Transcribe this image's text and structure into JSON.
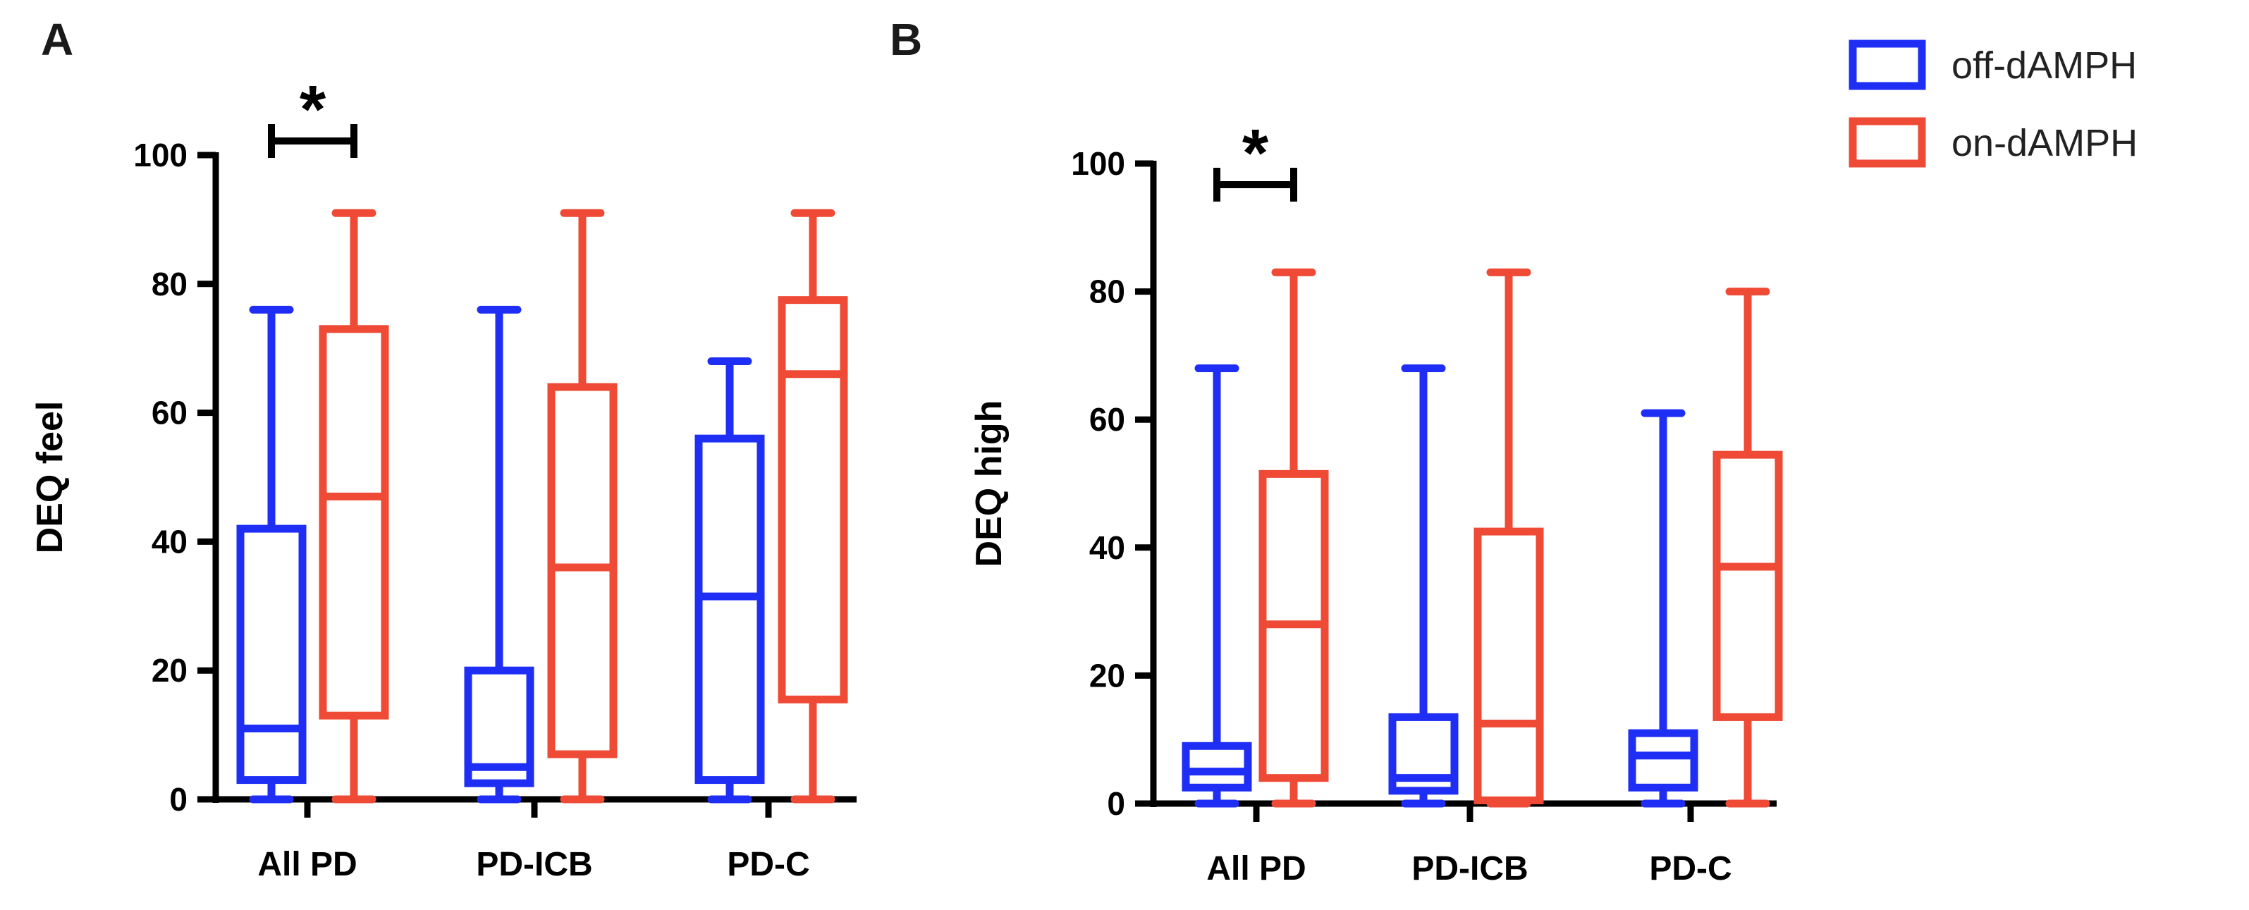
{
  "legend": [
    {
      "label": "off-dAMPH",
      "color": "#1f2ef5"
    },
    {
      "label": "on-dAMPH",
      "color": "#ee4a35"
    }
  ],
  "chart_data": [
    {
      "type": "boxplot",
      "panel_label": "A",
      "ylabel": "DEQ feel",
      "ylim": [
        0,
        100
      ],
      "yticks": [
        "0",
        "20",
        "40",
        "60",
        "80",
        "100"
      ],
      "categories": [
        "All PD",
        "PD-ICB",
        "PD-C"
      ],
      "significance": {
        "label": "*",
        "category": "All PD"
      },
      "series": [
        {
          "name": "off-dAMPH",
          "color": "#1f2ef5",
          "boxes": [
            {
              "min": 0,
              "q1": 3,
              "median": 11,
              "q3": 42,
              "max": 76
            },
            {
              "min": 0,
              "q1": 2.5,
              "median": 5,
              "q3": 20,
              "max": 76
            },
            {
              "min": 0,
              "q1": 3,
              "median": 31.5,
              "q3": 56,
              "max": 68
            }
          ]
        },
        {
          "name": "on-dAMPH",
          "color": "#ee4a35",
          "boxes": [
            {
              "min": 0,
              "q1": 13,
              "median": 47,
              "q3": 73,
              "max": 91
            },
            {
              "min": 0,
              "q1": 7,
              "median": 36,
              "q3": 64,
              "max": 91
            },
            {
              "min": 0,
              "q1": 15.5,
              "median": 66,
              "q3": 77.5,
              "max": 91
            }
          ]
        }
      ]
    },
    {
      "type": "boxplot",
      "panel_label": "B",
      "ylabel": "DEQ high",
      "ylim": [
        0,
        100
      ],
      "yticks": [
        "0",
        "20",
        "40",
        "60",
        "80",
        "100"
      ],
      "categories": [
        "All PD",
        "PD-ICB",
        "PD-C"
      ],
      "significance": {
        "label": "*",
        "category": "All PD"
      },
      "series": [
        {
          "name": "off-dAMPH",
          "color": "#1f2ef5",
          "boxes": [
            {
              "min": 0,
              "q1": 2.5,
              "median": 5,
              "q3": 9,
              "max": 68
            },
            {
              "min": 0,
              "q1": 2,
              "median": 4,
              "q3": 13.5,
              "max": 68
            },
            {
              "min": 0,
              "q1": 2.5,
              "median": 7.5,
              "q3": 11,
              "max": 61
            }
          ]
        },
        {
          "name": "on-dAMPH",
          "color": "#ee4a35",
          "boxes": [
            {
              "min": 0,
              "q1": 4,
              "median": 28,
              "q3": 51.5,
              "max": 83
            },
            {
              "min": 0,
              "q1": 0.5,
              "median": 12.5,
              "q3": 42.5,
              "max": 83
            },
            {
              "min": 0,
              "q1": 13.5,
              "median": 37,
              "q3": 54.5,
              "max": 80
            }
          ]
        }
      ]
    }
  ]
}
